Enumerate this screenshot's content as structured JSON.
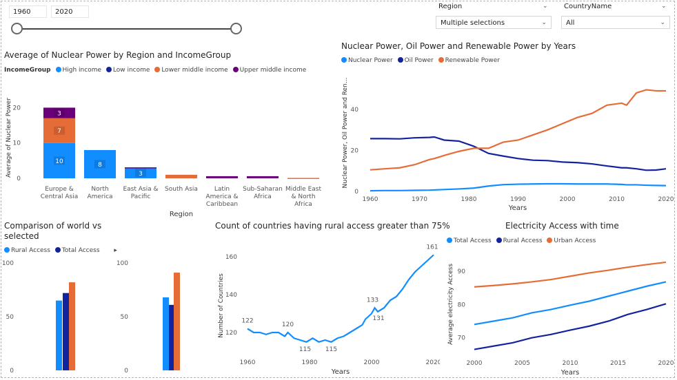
{
  "colors": {
    "blue": "#118DFF",
    "navy": "#12239E",
    "orange": "#E66C37",
    "purple": "#6B007B"
  },
  "year_slicer": {
    "start": "1960",
    "end": "2020",
    "from_fraction": 0,
    "to_fraction": 1
  },
  "region_slicer": {
    "label": "Region",
    "value": "Multiple selections",
    "icon": "chevron-down-icon"
  },
  "country_slicer": {
    "label": "CountryName",
    "value": "All",
    "icon": "chevron-down-icon"
  },
  "chart1": {
    "legend_title": "IncomeGroup",
    "legend_items": [
      "High income",
      "Low income",
      "Lower middle income",
      "Upper middle income"
    ]
  },
  "chart2": {
    "legend_items": [
      "Nuclear Power",
      "Oil Power",
      "Renewable Power"
    ]
  },
  "chart3": {
    "legend_items": [
      "Rural Access",
      "Total Access"
    ],
    "more_icon": "caret-right-icon"
  },
  "chart5": {
    "legend_items": [
      "Total Access",
      "Rural Access",
      "Urban Access"
    ]
  },
  "chart_data": [
    {
      "type": "bar",
      "title": "Average of Nuclear Power by Region and IncomeGroup",
      "xlabel": "Region",
      "ylabel": "Average of Nuclear Power",
      "categories": [
        "Europe & Central Asia",
        "North America",
        "East Asia & Pacific",
        "South Asia",
        "Latin America & Caribbean",
        "Sub-Saharan Africa",
        "Middle East & North Africa"
      ],
      "series": [
        {
          "name": "High income",
          "values": [
            10,
            8,
            3,
            0,
            0,
            0,
            0
          ]
        },
        {
          "name": "Low income",
          "values": [
            0,
            0,
            0,
            0,
            0,
            0,
            0
          ]
        },
        {
          "name": "Lower middle income",
          "values": [
            7,
            0,
            0,
            1,
            0,
            0,
            0.1
          ]
        },
        {
          "name": "Upper middle income",
          "values": [
            3,
            0,
            0.1,
            0,
            0.6,
            0.6,
            0
          ]
        }
      ],
      "data_labels": [
        "3",
        "7",
        "10",
        "8",
        "3"
      ],
      "ylim": [
        0,
        23
      ],
      "yticks": [
        "0",
        "10",
        "20"
      ],
      "stacked": true
    },
    {
      "type": "line",
      "title": "Nuclear Power, Oil Power and Renewable Power by Years",
      "xlabel": "Years",
      "ylabel": "Nuclear Power, Oil Power and Ren...",
      "x": [
        1960,
        1963,
        1966,
        1969,
        1972,
        1973,
        1975,
        1978,
        1981,
        1984,
        1987,
        1990,
        1993,
        1996,
        1999,
        2002,
        2005,
        2008,
        2011,
        2012,
        2014,
        2016,
        2018,
        2020
      ],
      "series": [
        {
          "name": "Nuclear Power",
          "values": [
            0.3,
            0.4,
            0.4,
            0.5,
            0.6,
            0.7,
            0.9,
            1.2,
            1.6,
            2.6,
            3.3,
            3.5,
            3.6,
            3.7,
            3.7,
            3.6,
            3.6,
            3.6,
            3.4,
            3.2,
            3.2,
            3.0,
            2.9,
            2.8
          ]
        },
        {
          "name": "Oil Power",
          "values": [
            25.7,
            25.7,
            25.6,
            26.1,
            26.3,
            26.5,
            25,
            24.5,
            22,
            18.5,
            17.2,
            16,
            15.2,
            15,
            14.3,
            14,
            13.4,
            12.4,
            11.5,
            11.5,
            11,
            10.3,
            10.4,
            11
          ]
        },
        {
          "name": "Renewable Power",
          "values": [
            10.5,
            11,
            11.5,
            13,
            15.5,
            16,
            17.5,
            19.5,
            21,
            21,
            24,
            25,
            27.5,
            30,
            33,
            36,
            38,
            42,
            43,
            42,
            48,
            49.5,
            49,
            49
          ]
        }
      ],
      "ylim": [
        0,
        52
      ],
      "yticks": [
        "0",
        "20",
        "40"
      ],
      "xticks": [
        "1960",
        "1970",
        "1980",
        "1990",
        "2000",
        "2010",
        "2020"
      ]
    },
    {
      "type": "bar",
      "title": "Comparison of world vs selected",
      "panels": [
        {
          "categories": [
            "Rural Access",
            "Total Access",
            "Urban Access"
          ],
          "values": [
            65,
            72,
            82
          ]
        },
        {
          "categories": [
            "Rural Access",
            "Total Access",
            "Urban Access"
          ],
          "values": [
            68,
            61,
            91
          ]
        }
      ],
      "ylim": [
        0,
        100
      ],
      "yticks": [
        "0",
        "50",
        "100"
      ]
    },
    {
      "type": "line",
      "title": "Count of countries having rural access greater than 75%",
      "xlabel": "Years",
      "ylabel": "Number of Countries",
      "x": [
        1960,
        1962,
        1964,
        1966,
        1968,
        1970,
        1972,
        1973,
        1975,
        1977,
        1979,
        1981,
        1983,
        1985,
        1987,
        1989,
        1991,
        1993,
        1995,
        1997,
        1998,
        2000,
        2001,
        2002,
        2004,
        2006,
        2008,
        2010,
        2012,
        2014,
        2016,
        2018,
        2020
      ],
      "series": [
        {
          "name": "Count",
          "values": [
            122,
            120,
            120,
            119,
            120,
            120,
            118,
            120,
            117,
            116,
            115,
            117,
            115,
            116,
            115,
            117,
            118,
            120,
            122,
            124,
            127,
            130,
            133,
            131,
            133,
            137,
            139,
            143,
            148,
            152,
            155,
            158,
            161
          ]
        }
      ],
      "annotations": [
        {
          "x": 1960,
          "label": "122"
        },
        {
          "x": 1973,
          "label": "120"
        },
        {
          "x": 1979,
          "label": "115"
        },
        {
          "x": 1987,
          "label": "115"
        },
        {
          "x": 2001,
          "label": "133"
        },
        {
          "x": 2002,
          "label": "131"
        },
        {
          "x": 2020,
          "label": "161"
        }
      ],
      "ylim": [
        112,
        164
      ],
      "yticks": [
        "120",
        "140",
        "160"
      ],
      "xticks": [
        "1960",
        "1980",
        "2000",
        "2020"
      ]
    },
    {
      "type": "line",
      "title": "Electricity Access with time",
      "xlabel": "Years",
      "ylabel": "Average electricity Access",
      "x": [
        2000,
        2002,
        2004,
        2006,
        2008,
        2010,
        2012,
        2014,
        2016,
        2018,
        2020
      ],
      "series": [
        {
          "name": "Total Access",
          "values": [
            74,
            75,
            76,
            77.5,
            78.5,
            79.8,
            81,
            82.5,
            84,
            85.5,
            86.8
          ]
        },
        {
          "name": "Rural Access",
          "values": [
            66.5,
            67.5,
            68.5,
            70,
            71,
            72.3,
            73.5,
            75,
            77,
            78.5,
            80.2
          ]
        },
        {
          "name": "Urban Access",
          "values": [
            85.3,
            85.7,
            86.2,
            86.8,
            87.5,
            88.5,
            89.5,
            90.3,
            91.2,
            92,
            92.7
          ]
        }
      ],
      "ylim": [
        66,
        96
      ],
      "yticks": [
        "70",
        "80",
        "90"
      ],
      "xticks": [
        "2000",
        "2005",
        "2010",
        "2015",
        "2020"
      ]
    }
  ]
}
